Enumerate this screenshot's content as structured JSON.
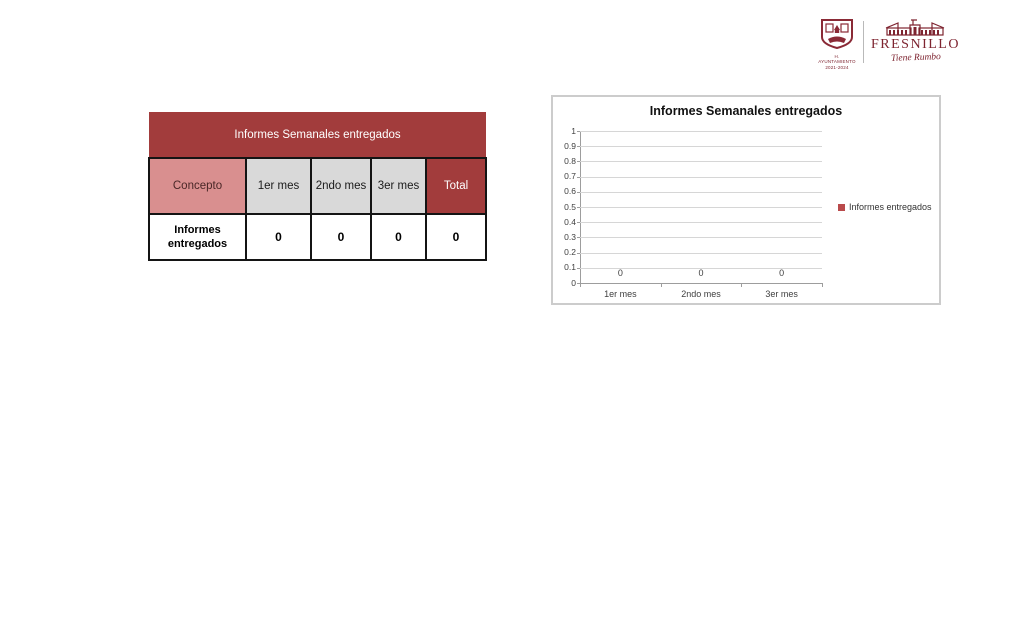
{
  "logo": {
    "crest_caption_line1": "H. AYUNTAMIENTO",
    "crest_caption_line2": "2021-2024",
    "city_name": "FRESNILLO",
    "tagline": "Tiene Rumbo",
    "brand_color": "#7e2430"
  },
  "table": {
    "title": "Informes Semanales entregados",
    "columns": [
      "Concepto",
      "1er mes",
      "2ndo mes",
      "3er mes",
      "Total"
    ],
    "rows": [
      {
        "concepto": "Informes entregados",
        "values": [
          "0",
          "0",
          "0",
          "0"
        ]
      }
    ],
    "colors": {
      "title_bg": "#a23c3c",
      "concepto_bg": "#d98f8f",
      "month_bg": "#d9d9d9",
      "total_bg": "#a23c3c",
      "border": "#141414"
    }
  },
  "chart_data": {
    "type": "bar",
    "title": "Informes Semanales entregados",
    "categories": [
      "1er mes",
      "2ndo mes",
      "3er mes"
    ],
    "series": [
      {
        "name": "Informes entregados",
        "values": [
          0,
          0,
          0
        ],
        "color": "#b94a4b"
      }
    ],
    "data_labels": [
      "0",
      "0",
      "0"
    ],
    "xlabel": "",
    "ylabel": "",
    "ylim": [
      0,
      1
    ],
    "ytick_step": 0.1,
    "yticks": [
      "1",
      "0.9",
      "0.8",
      "0.7",
      "0.6",
      "0.5",
      "0.4",
      "0.3",
      "0.2",
      "0.1",
      "0"
    ],
    "grid": true,
    "legend_position": "right",
    "gridline_color": "#d6d6d6",
    "axis_color": "#9d9d9d"
  }
}
